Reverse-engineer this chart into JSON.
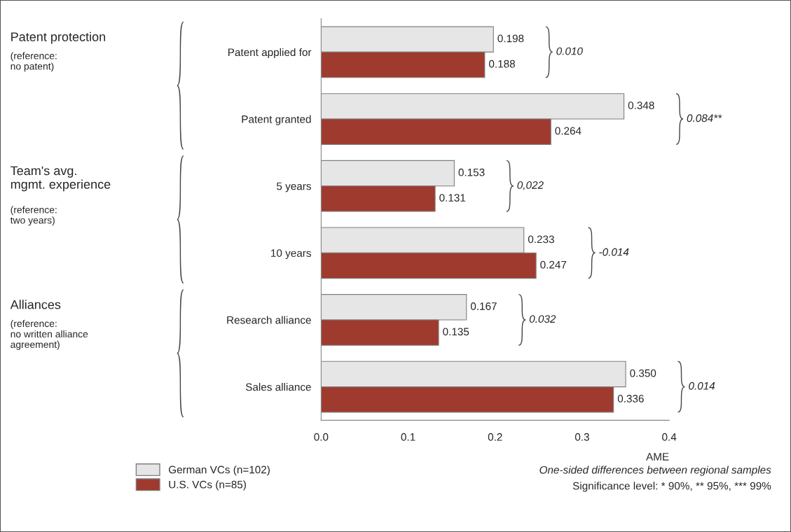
{
  "chart_data": {
    "type": "bar",
    "orientation": "horizontal",
    "categories": [
      "Patent applied for",
      "Patent granted",
      "5 years",
      "10 years",
      "Research alliance",
      "Sales alliance"
    ],
    "series": [
      {
        "name": "German VCs (n=102)",
        "color": "#e6e6e6",
        "values": [
          0.198,
          0.348,
          0.153,
          0.233,
          0.167,
          0.35
        ],
        "value_labels": [
          "0.198",
          "0.348",
          "0.153",
          "0.233",
          "0.167",
          "0.350"
        ]
      },
      {
        "name": "U.S. VCs (n=85)",
        "color": "#9e3a2e",
        "values": [
          0.188,
          0.264,
          0.131,
          0.247,
          0.135,
          0.336
        ],
        "value_labels": [
          "0.188",
          "0.264",
          "0.131",
          "0.247",
          "0.135",
          "0.336"
        ]
      }
    ],
    "xlabel": "AME",
    "xlim": [
      0,
      0.4
    ],
    "xticks": [
      {
        "value": 0,
        "label": "0.0"
      },
      0.1,
      0.2,
      0.3,
      0.4
    ],
    "legend": "bottom left",
    "annotations": [
      "0.010",
      "0.084**",
      "0,022",
      "-0.014",
      "0.032",
      "0.014",
      "Patent protection",
      "(reference:\nno patent)",
      "Team's avg.\nmgmt. experience",
      "(reference:\ntwo years)",
      "Alliances",
      "(reference:\nno written alliance\nagreement)",
      "One-sided differences between regional samples",
      "Significance level: * 90%, ** 95%, *** 99%"
    ]
  }
}
